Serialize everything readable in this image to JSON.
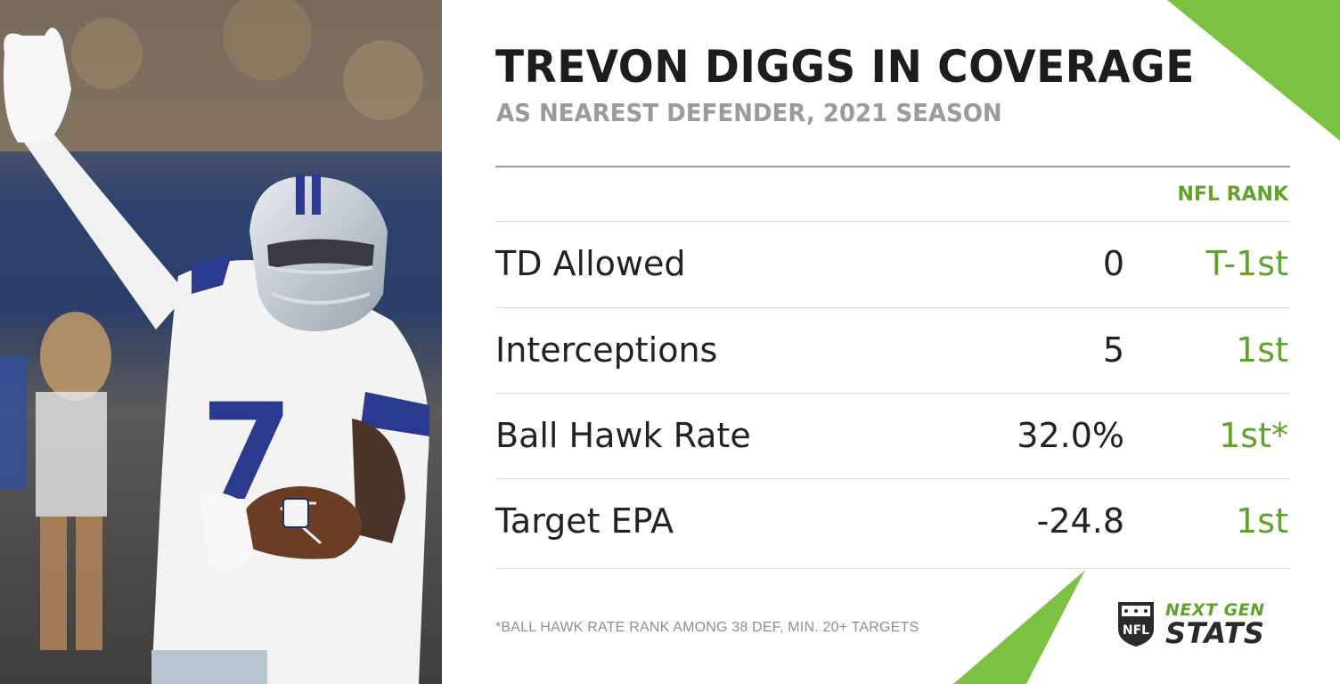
{
  "header": {
    "title": "TREVON DIGGS IN COVERAGE",
    "subtitle": "AS NEAREST DEFENDER, 2021 SEASON"
  },
  "table": {
    "rank_header": "NFL RANK",
    "rows": [
      {
        "label": "TD Allowed",
        "value": "0",
        "rank": "T-1st"
      },
      {
        "label": "Interceptions",
        "value": "5",
        "rank": "1st"
      },
      {
        "label": "Ball Hawk Rate",
        "value": "32.0%",
        "rank": "1st*"
      },
      {
        "label": "Target EPA",
        "value": "-24.8",
        "rank": "1st"
      }
    ]
  },
  "footnote": "*BALL HAWK RATE RANK AMONG 38 DEF, MIN. 20+ TARGETS",
  "brand": {
    "line1": "NEXT GEN",
    "line2": "STATS",
    "shield_text": "NFL"
  },
  "photo": {
    "jersey_number": "7"
  },
  "colors": {
    "accent_green": "#5fa32b",
    "wedge_green": "#7cc242",
    "title": "#1d1d1d",
    "subtitle": "#9b9b9b",
    "jersey_blue": "#2b3a8f"
  }
}
